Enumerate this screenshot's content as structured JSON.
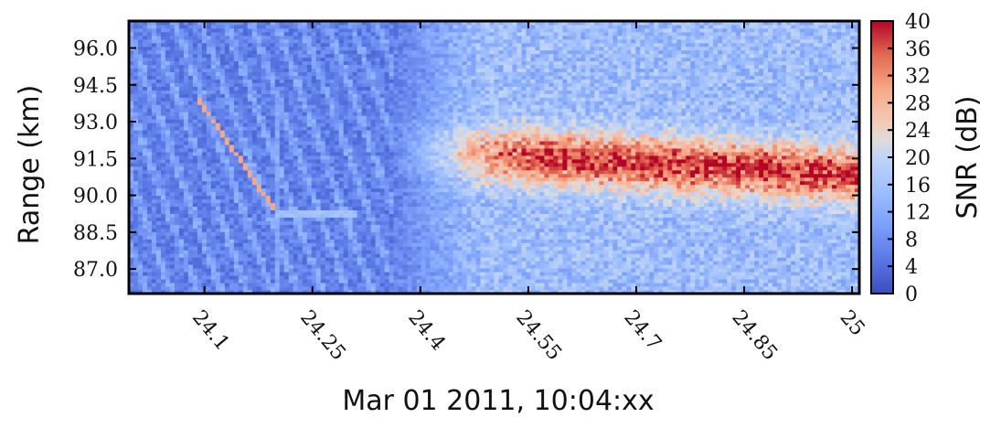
{
  "chart_data": {
    "type": "heatmap",
    "title": "",
    "xlabel": "Mar 01 2011, 10:04:xx",
    "ylabel": "Range (km)",
    "x_ticks": [
      "24.1",
      "24.25",
      "24.4",
      "24.55",
      "24.7",
      "24.85",
      "25"
    ],
    "x_tick_values": [
      24.1,
      24.25,
      24.4,
      24.55,
      24.7,
      24.85,
      25.0
    ],
    "xlim": [
      23.995,
      25.01
    ],
    "y_ticks": [
      "96.0",
      "94.5",
      "93.0",
      "91.5",
      "90.0",
      "88.5",
      "87.0"
    ],
    "y_tick_values": [
      96.0,
      94.5,
      93.0,
      91.5,
      90.0,
      88.5,
      87.0
    ],
    "ylim": [
      86.0,
      97.1
    ],
    "colorbar": {
      "label": "SNR (dB)",
      "ticks": [
        "40",
        "36",
        "32",
        "28",
        "24",
        "20",
        "16",
        "12",
        "8",
        "4",
        "0"
      ],
      "range": [
        0,
        40
      ],
      "colormap": "coolwarm",
      "low_color": "#3b4cc0",
      "mid_color": "#dddddd",
      "high_color": "#b40426"
    },
    "features": {
      "meteor_trail": {
        "t_start": 24.09,
        "r_start": 94.0,
        "t_end": 24.2,
        "r_end": 89.3,
        "snr_db": 30
      },
      "head_echo_tail": {
        "t_start": 24.2,
        "t_end": 24.31,
        "range": 89.3,
        "snr_db": 14
      },
      "enhanced_layer": {
        "t_start": 24.36,
        "t_end": 25.01,
        "center_range": 91.5,
        "peak_snr_db": 38
      }
    }
  }
}
